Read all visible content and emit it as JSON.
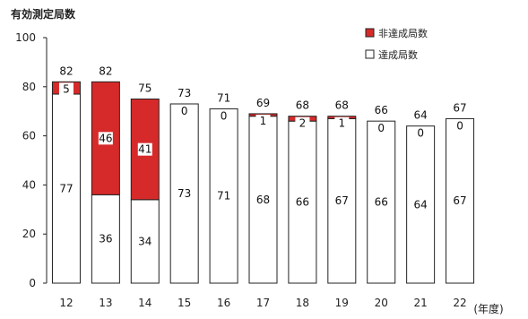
{
  "chart_data": {
    "type": "bar",
    "stacked": true,
    "ylabel": "有効測定局数",
    "x_unit": "(年度)",
    "ylim": [
      0,
      100
    ],
    "yticks": [
      0,
      20,
      40,
      60,
      80,
      100
    ],
    "categories": [
      "12",
      "13",
      "14",
      "15",
      "16",
      "17",
      "18",
      "19",
      "20",
      "21",
      "22"
    ],
    "totals": [
      82,
      82,
      75,
      73,
      71,
      69,
      68,
      68,
      66,
      64,
      67
    ],
    "series": [
      {
        "name": "達成局数",
        "values": [
          77,
          36,
          34,
          73,
          71,
          68,
          66,
          67,
          66,
          64,
          67
        ]
      },
      {
        "name": "非達成局数",
        "values": [
          5,
          46,
          41,
          0,
          0,
          1,
          2,
          1,
          0,
          0,
          0
        ]
      }
    ],
    "legend": [
      {
        "label": "非達成局数",
        "color": "#d62a2a",
        "style": "filled"
      },
      {
        "label": "達成局数",
        "color": "#ffffff",
        "style": "outline"
      }
    ],
    "legend_position": "top-right",
    "colors": {
      "non_achieved": "#d62a2a",
      "achieved": "#ffffff",
      "outline": "#222222"
    }
  }
}
